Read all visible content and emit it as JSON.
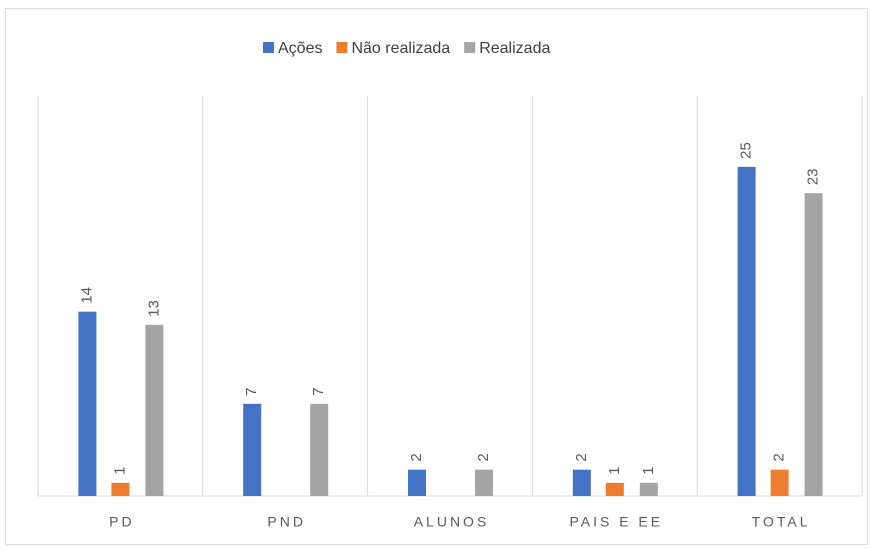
{
  "chart_data": {
    "type": "bar",
    "categories": [
      "PD",
      "PND",
      "ALUNOS",
      "PAIS E EE",
      "TOTAL"
    ],
    "series": [
      {
        "name": "Ações",
        "color": "#4472c4",
        "values": [
          14,
          7,
          2,
          2,
          25
        ]
      },
      {
        "name": "Não realizada",
        "color": "#ed7d31",
        "values": [
          1,
          null,
          null,
          1,
          2
        ]
      },
      {
        "name": "Realizada",
        "color": "#a5a5a5",
        "values": [
          13,
          7,
          2,
          1,
          23
        ]
      }
    ],
    "ylim": [
      0,
      30
    ],
    "legend": "top"
  }
}
